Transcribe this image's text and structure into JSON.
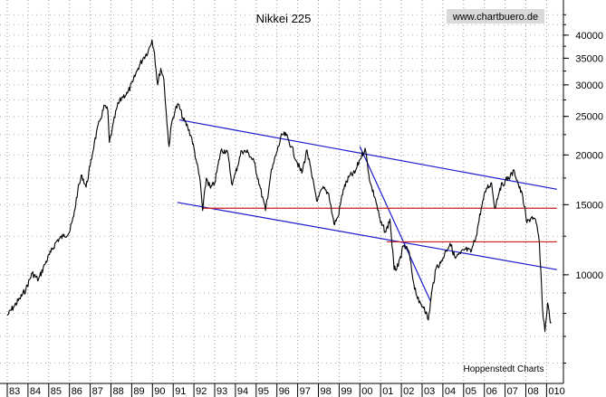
{
  "chart_data": {
    "type": "line",
    "title": "Nikkei 225",
    "watermark": "www.chartbuero.de",
    "footer": "Hoppenstedt Charts",
    "y_scale": "log",
    "ylim": [
      5800,
      48000
    ],
    "xlim": [
      1983.0,
      2009.0
    ],
    "grid": "dotted",
    "y_ticks": [
      {
        "value": 10000,
        "label": "10000"
      },
      {
        "value": 15000,
        "label": "15000"
      },
      {
        "value": 20000,
        "label": "20000"
      },
      {
        "value": 25000,
        "label": "25000"
      },
      {
        "value": 30000,
        "label": "30000"
      },
      {
        "value": 35000,
        "label": "35000"
      },
      {
        "value": 40000,
        "label": "40000"
      }
    ],
    "x_ticks": [
      {
        "x": 1983,
        "label": "83"
      },
      {
        "x": 1984,
        "label": "84"
      },
      {
        "x": 1985,
        "label": "85"
      },
      {
        "x": 1986,
        "label": "86"
      },
      {
        "x": 1987,
        "label": "87"
      },
      {
        "x": 1988,
        "label": "88"
      },
      {
        "x": 1989,
        "label": "89"
      },
      {
        "x": 1990,
        "label": "90"
      },
      {
        "x": 1991,
        "label": "91"
      },
      {
        "x": 1992,
        "label": "92"
      },
      {
        "x": 1993,
        "label": "93"
      },
      {
        "x": 1994,
        "label": "94"
      },
      {
        "x": 1995,
        "label": "95"
      },
      {
        "x": 1996,
        "label": "96"
      },
      {
        "x": 1997,
        "label": "97"
      },
      {
        "x": 1998,
        "label": "98"
      },
      {
        "x": 1999,
        "label": "99"
      },
      {
        "x": 2000,
        "label": "00"
      },
      {
        "x": 2001,
        "label": "01"
      },
      {
        "x": 2002,
        "label": "02"
      },
      {
        "x": 2003,
        "label": "03"
      },
      {
        "x": 2004,
        "label": "04"
      },
      {
        "x": 2005,
        "label": "05"
      },
      {
        "x": 2006,
        "label": "06"
      },
      {
        "x": 2007,
        "label": "07"
      },
      {
        "x": 2008,
        "label": "08"
      },
      {
        "x": 2009,
        "label": "010"
      }
    ],
    "series": [
      {
        "color": "#000000",
        "points": [
          [
            1983.0,
            7900
          ],
          [
            1983.3,
            8300
          ],
          [
            1983.6,
            8700
          ],
          [
            1983.9,
            9200
          ],
          [
            1984.2,
            10100
          ],
          [
            1984.5,
            9700
          ],
          [
            1984.8,
            10600
          ],
          [
            1985.1,
            11400
          ],
          [
            1985.4,
            12200
          ],
          [
            1985.7,
            12500
          ],
          [
            1986.0,
            12800
          ],
          [
            1986.2,
            14000
          ],
          [
            1986.4,
            16300
          ],
          [
            1986.6,
            17800
          ],
          [
            1986.8,
            16600
          ],
          [
            1987.0,
            18800
          ],
          [
            1987.2,
            21500
          ],
          [
            1987.45,
            24300
          ],
          [
            1987.7,
            26600
          ],
          [
            1987.85,
            25800
          ],
          [
            1987.92,
            21500
          ],
          [
            1988.05,
            23000
          ],
          [
            1988.3,
            26500
          ],
          [
            1988.55,
            28000
          ],
          [
            1988.8,
            28600
          ],
          [
            1989.05,
            30500
          ],
          [
            1989.3,
            33000
          ],
          [
            1989.55,
            35000
          ],
          [
            1989.8,
            36500
          ],
          [
            1989.98,
            38900
          ],
          [
            1990.1,
            36000
          ],
          [
            1990.25,
            30000
          ],
          [
            1990.4,
            33000
          ],
          [
            1990.55,
            31000
          ],
          [
            1990.7,
            24000
          ],
          [
            1990.8,
            21000
          ],
          [
            1990.92,
            24000
          ],
          [
            1991.1,
            26000
          ],
          [
            1991.25,
            26800
          ],
          [
            1991.5,
            24500
          ],
          [
            1991.7,
            23500
          ],
          [
            1991.9,
            22000
          ],
          [
            1992.1,
            19500
          ],
          [
            1992.3,
            17200
          ],
          [
            1992.42,
            14500
          ],
          [
            1992.6,
            17500
          ],
          [
            1992.8,
            16500
          ],
          [
            1993.0,
            17000
          ],
          [
            1993.3,
            20500
          ],
          [
            1993.6,
            20500
          ],
          [
            1993.85,
            16800
          ],
          [
            1994.0,
            18000
          ],
          [
            1994.3,
            20500
          ],
          [
            1994.6,
            20300
          ],
          [
            1994.9,
            19200
          ],
          [
            1995.2,
            16500
          ],
          [
            1995.45,
            14500
          ],
          [
            1995.7,
            17800
          ],
          [
            1995.95,
            20000
          ],
          [
            1996.25,
            22500
          ],
          [
            1996.45,
            22400
          ],
          [
            1996.7,
            21000
          ],
          [
            1996.95,
            19300
          ],
          [
            1997.2,
            18000
          ],
          [
            1997.45,
            20600
          ],
          [
            1997.7,
            17500
          ],
          [
            1997.95,
            15300
          ],
          [
            1998.2,
            16500
          ],
          [
            1998.5,
            16000
          ],
          [
            1998.75,
            13400
          ],
          [
            1998.95,
            14000
          ],
          [
            1999.2,
            16400
          ],
          [
            1999.5,
            17700
          ],
          [
            1999.75,
            18000
          ],
          [
            2000.0,
            19500
          ],
          [
            2000.25,
            20800
          ],
          [
            2000.5,
            17000
          ],
          [
            2000.75,
            15500
          ],
          [
            2001.0,
            13500
          ],
          [
            2001.25,
            12800
          ],
          [
            2001.45,
            13800
          ],
          [
            2001.65,
            10300
          ],
          [
            2001.85,
            10500
          ],
          [
            2002.1,
            11800
          ],
          [
            2002.35,
            11500
          ],
          [
            2002.6,
            9500
          ],
          [
            2002.85,
            8500
          ],
          [
            2003.1,
            8300
          ],
          [
            2003.3,
            7700
          ],
          [
            2003.5,
            9300
          ],
          [
            2003.7,
            10500
          ],
          [
            2003.9,
            10700
          ],
          [
            2004.15,
            11500
          ],
          [
            2004.35,
            12000
          ],
          [
            2004.6,
            11000
          ],
          [
            2004.85,
            11300
          ],
          [
            2005.1,
            11600
          ],
          [
            2005.35,
            11400
          ],
          [
            2005.6,
            12500
          ],
          [
            2005.85,
            14700
          ],
          [
            2006.1,
            16500
          ],
          [
            2006.35,
            17000
          ],
          [
            2006.5,
            14700
          ],
          [
            2006.75,
            16500
          ],
          [
            2007.0,
            17200
          ],
          [
            2007.25,
            17700
          ],
          [
            2007.45,
            18200
          ],
          [
            2007.65,
            16800
          ],
          [
            2007.85,
            15700
          ],
          [
            2008.05,
            13500
          ],
          [
            2008.3,
            14000
          ],
          [
            2008.5,
            13500
          ],
          [
            2008.65,
            12100
          ],
          [
            2008.8,
            8300
          ],
          [
            2008.92,
            7200
          ],
          [
            2009.05,
            8500
          ],
          [
            2009.15,
            7800
          ],
          [
            2009.22,
            7600
          ]
        ]
      }
    ],
    "trend_lines": [
      {
        "color": "#1a1acc",
        "from": [
          1991.3,
          24500
        ],
        "to": [
          2009.5,
          16400
        ]
      },
      {
        "color": "#1a1acc",
        "from": [
          1991.2,
          15200
        ],
        "to": [
          2009.5,
          10300
        ]
      },
      {
        "color": "#1a1acc",
        "from": [
          2000.0,
          21000
        ],
        "to": [
          2003.4,
          8600
        ]
      },
      {
        "color": "#cc1a1a",
        "from": [
          1992.4,
          14700
        ],
        "to": [
          2009.5,
          14700
        ]
      },
      {
        "color": "#cc1a1a",
        "from": [
          2001.3,
          12100
        ],
        "to": [
          2009.5,
          12100
        ]
      }
    ]
  }
}
